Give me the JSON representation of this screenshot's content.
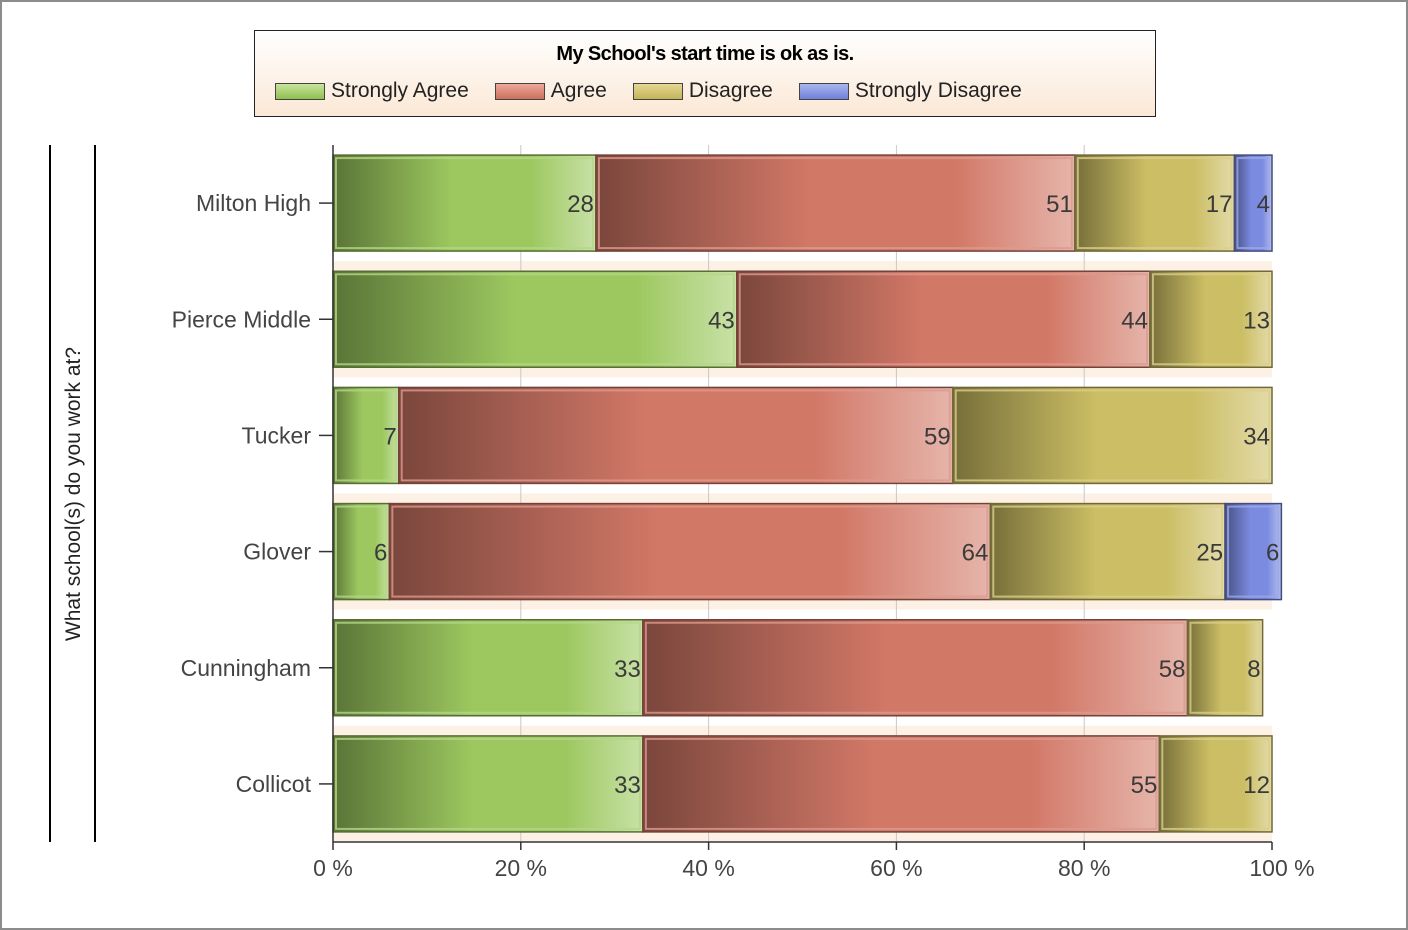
{
  "chart_data": {
    "type": "bar",
    "orientation": "horizontal",
    "stacked": "percent",
    "title": "My School's start time is ok as is.",
    "ylabel": "What school(s) do you work at?",
    "categories": [
      "Milton High",
      "Pierce Middle",
      "Tucker",
      "Glover",
      "Cunningham",
      "Collicot"
    ],
    "series": [
      {
        "name": "Strongly Agree",
        "color": "#9cc85f",
        "values": [
          28,
          43,
          7,
          6,
          33,
          33
        ]
      },
      {
        "name": "Agree",
        "color": "#d27867",
        "values": [
          51,
          44,
          59,
          64,
          58,
          55
        ]
      },
      {
        "name": "Disagree",
        "color": "#ccbe64",
        "values": [
          17,
          13,
          34,
          25,
          8,
          12
        ]
      },
      {
        "name": "Strongly Disagree",
        "color": "#7b8be0",
        "values": [
          4,
          0,
          0,
          6,
          0,
          0
        ]
      }
    ],
    "xticks": [
      "0 %",
      "20 %",
      "40 %",
      "60 %",
      "80 %",
      "100 %"
    ],
    "xlim": [
      0,
      100
    ],
    "grid": true,
    "legend_position": "top"
  }
}
